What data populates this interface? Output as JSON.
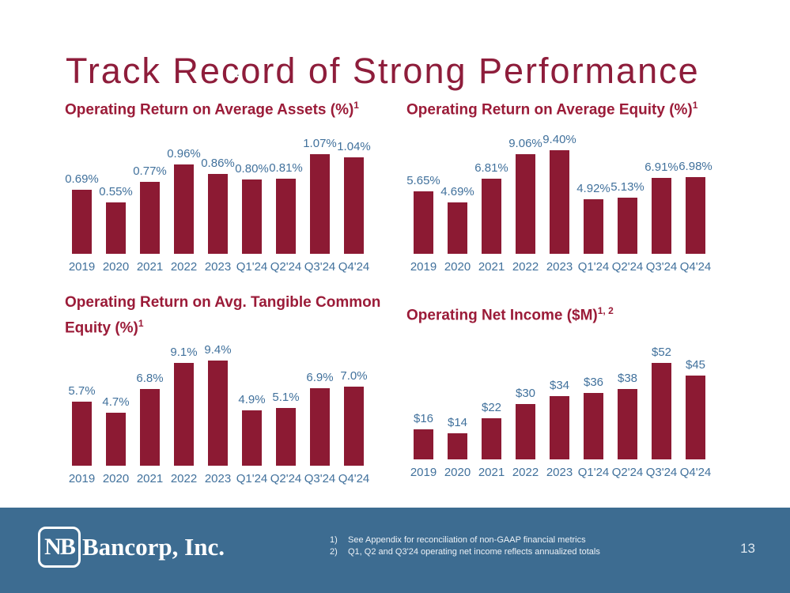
{
  "slide": {
    "title": "Track Record of Strong Performance",
    "stray_dot": "."
  },
  "colors": {
    "bar_maroon": "#8C1A33",
    "title_maroon": "#9B1B38",
    "main_title_maroon": "#8E1D3B",
    "label_blue": "#41719C",
    "footer_blue": "#3D6C91"
  },
  "chart_data": [
    {
      "type": "bar",
      "title": "Operating Return on Average Assets (%)",
      "superscript": "1",
      "categories": [
        "2019",
        "2020",
        "2021",
        "2022",
        "2023",
        "Q1'24",
        "Q2'24",
        "Q3'24",
        "Q4'24"
      ],
      "values": [
        0.69,
        0.55,
        0.77,
        0.96,
        0.86,
        0.8,
        0.81,
        1.07,
        1.04
      ],
      "value_labels": [
        "0.69%",
        "0.55%",
        "0.77%",
        "0.96%",
        "0.86%",
        "0.80%",
        "0.81%",
        "1.07%",
        "1.04%"
      ],
      "xlabel": "",
      "ylabel": "",
      "ylim": [
        0,
        1.07
      ],
      "grid": false,
      "legend": "none",
      "bar_color": "#8C1A33"
    },
    {
      "type": "bar",
      "title": "Operating Return on Average Equity (%)",
      "superscript": "1",
      "categories": [
        "2019",
        "2020",
        "2021",
        "2022",
        "2023",
        "Q1'24",
        "Q2'24",
        "Q3'24",
        "Q4'24"
      ],
      "values": [
        5.65,
        4.69,
        6.81,
        9.06,
        9.4,
        4.92,
        5.13,
        6.91,
        6.98
      ],
      "value_labels": [
        "5.65%",
        "4.69%",
        "6.81%",
        "9.06%",
        "9.40%",
        "4.92%",
        "5.13%",
        "6.91%",
        "6.98%"
      ],
      "xlabel": "",
      "ylabel": "",
      "ylim": [
        0,
        9.4
      ],
      "grid": false,
      "legend": "none",
      "bar_color": "#8C1A33"
    },
    {
      "type": "bar",
      "title": "Operating Return on Avg. Tangible Common Equity (%)",
      "superscript": "1",
      "categories": [
        "2019",
        "2020",
        "2021",
        "2022",
        "2023",
        "Q1'24",
        "Q2'24",
        "Q3'24",
        "Q4'24"
      ],
      "values": [
        5.7,
        4.7,
        6.8,
        9.1,
        9.4,
        4.9,
        5.1,
        6.9,
        7.0
      ],
      "value_labels": [
        "5.7%",
        "4.7%",
        "6.8%",
        "9.1%",
        "9.4%",
        "4.9%",
        "5.1%",
        "6.9%",
        "7.0%"
      ],
      "xlabel": "",
      "ylabel": "",
      "ylim": [
        0,
        9.4
      ],
      "grid": false,
      "legend": "none",
      "bar_color": "#8C1A33"
    },
    {
      "type": "bar",
      "title": "Operating Net Income ($M)",
      "superscript": "1, 2",
      "categories": [
        "2019",
        "2020",
        "2021",
        "2022",
        "2023",
        "Q1'24",
        "Q2'24",
        "Q3'24",
        "Q4'24"
      ],
      "values": [
        16,
        14,
        22,
        30,
        34,
        36,
        38,
        52,
        45
      ],
      "value_labels": [
        "$16",
        "$14",
        "$22",
        "$30",
        "$34",
        "$36",
        "$38",
        "$52",
        "$45"
      ],
      "xlabel": "",
      "ylabel": "",
      "ylim": [
        0,
        52
      ],
      "grid": false,
      "legend": "none",
      "bar_color": "#8C1A33"
    }
  ],
  "footer": {
    "logo_mark": "NB",
    "logo_text": "Bancorp, Inc.",
    "footnotes": [
      {
        "num": "1)",
        "text": "See Appendix for reconciliation of non-GAAP financial metrics"
      },
      {
        "num": "2)",
        "text": "Q1, Q2 and Q3'24 operating net income reflects annualized totals"
      }
    ],
    "page_number": "13"
  }
}
